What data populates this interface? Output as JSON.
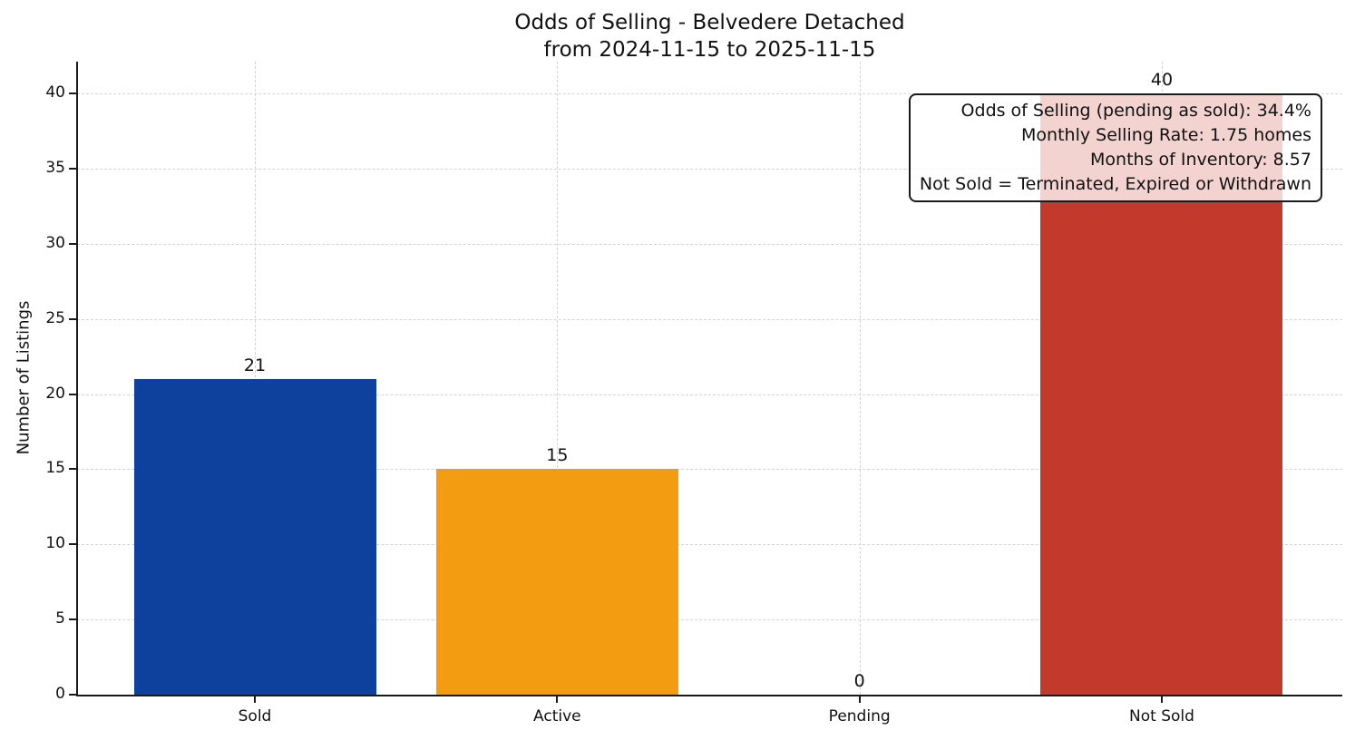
{
  "chart_data": {
    "type": "bar",
    "title_line1": "Odds of Selling - Belvedere Detached",
    "title_line2": "from 2024-11-15 to 2025-11-15",
    "categories": [
      "Sold",
      "Active",
      "Pending",
      "Not Sold"
    ],
    "values": [
      21,
      15,
      0,
      40
    ],
    "bar_colors": [
      "#0e419e",
      "#f39c12",
      "#b0b0b0",
      "#c3392c"
    ],
    "xlabel": "",
    "ylabel": "Number of Listings",
    "yticks": [
      0,
      5,
      10,
      15,
      20,
      25,
      30,
      35,
      40
    ],
    "ylim": [
      0,
      42.1
    ],
    "grid": "dashed, horizontal and vertical",
    "legend": "none",
    "annotation": {
      "lines": [
        "Odds of Selling (pending as sold): 34.4%",
        "Monthly Selling Rate: 1.75 homes",
        "Months of Inventory: 8.57",
        "Not Sold = Terminated, Expired or Withdrawn"
      ]
    },
    "colors": {
      "sold_bar": "#0e419e",
      "active_bar": "#f39c12",
      "not_sold_bar": "#c3392c",
      "grid": "#d4d4d4",
      "spine": "#1a1a1a",
      "background": "#ffffff",
      "annotation_bg": "rgba(255,255,255,0.78)"
    }
  }
}
